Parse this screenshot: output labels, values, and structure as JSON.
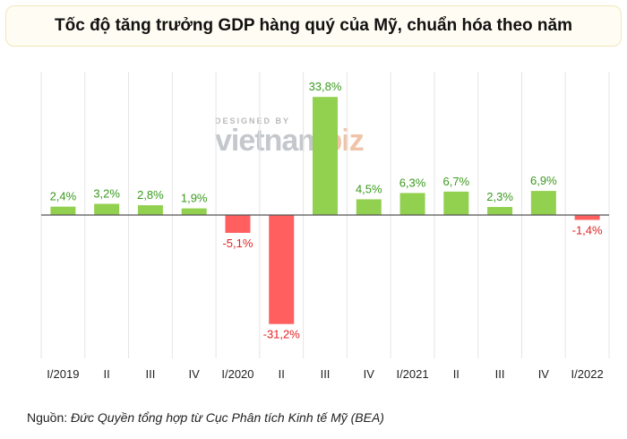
{
  "title": "Tốc độ tăng trưởng GDP hàng quý của Mỹ, chuẩn hóa theo năm",
  "watermark": {
    "designed_by": "DESIGNED BY",
    "logo_main": "vietnam",
    "logo_accent": "biz"
  },
  "source": {
    "prefix": "Nguồn:",
    "text": "Đức Quyền tổng hợp từ Cục Phân tích Kinh tế Mỹ (BEA)"
  },
  "colors": {
    "positive": "#92d050",
    "negative": "#ff5f5f",
    "positive_label": "#3a9a1e",
    "negative_label": "#e02424"
  },
  "chart_data": {
    "type": "bar",
    "title": "Tốc độ tăng trưởng GDP hàng quý của Mỹ, chuẩn hóa theo năm",
    "xlabel": "",
    "ylabel": "",
    "categories": [
      "I/2019",
      "II",
      "III",
      "IV",
      "I/2020",
      "II",
      "III",
      "IV",
      "I/2021",
      "II",
      "III",
      "IV",
      "I/2022"
    ],
    "values": [
      2.4,
      3.2,
      2.8,
      1.9,
      -5.1,
      -31.2,
      33.8,
      4.5,
      6.3,
      6.7,
      2.3,
      6.9,
      -1.4
    ],
    "labels": [
      "2,4%",
      "3,2%",
      "2,8%",
      "1,9%",
      "-5,1%",
      "-31,2%",
      "33,8%",
      "4,5%",
      "6,3%",
      "6,7%",
      "2,3%",
      "6,9%",
      "-1,4%"
    ],
    "ylim": [
      -40,
      40
    ],
    "grid": "vertical"
  }
}
